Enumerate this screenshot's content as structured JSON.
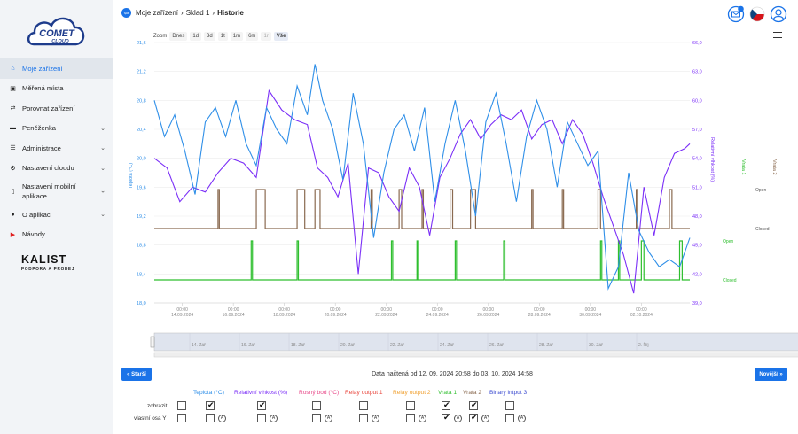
{
  "sidebar": {
    "logo_text": "COMET",
    "logo_sub": "CLOUD",
    "items": [
      {
        "label": "Moje zařízení",
        "icon": "home-icon",
        "active": true,
        "chevron": false
      },
      {
        "label": "Měřená místa",
        "icon": "location-icon",
        "active": false,
        "chevron": false
      },
      {
        "label": "Porovnat zařízení",
        "icon": "compare-icon",
        "active": false,
        "chevron": false
      },
      {
        "label": "Peněženka",
        "icon": "wallet-icon",
        "active": false,
        "chevron": true
      },
      {
        "label": "Administrace",
        "icon": "admin-icon",
        "active": false,
        "chevron": true
      },
      {
        "label": "Nastavení cloudu",
        "icon": "cloud-settings-icon",
        "active": false,
        "chevron": true
      },
      {
        "label": "Nastavení mobilní aplikace",
        "icon": "mobile-icon",
        "active": false,
        "chevron": true
      },
      {
        "label": "O aplikaci",
        "icon": "info-icon",
        "active": false,
        "chevron": true
      },
      {
        "label": "Návody",
        "icon": "youtube-icon",
        "active": false,
        "chevron": false
      }
    ],
    "partner_name": "KALIST",
    "partner_sub": "PODPORA A PRODEJ"
  },
  "breadcrumb": [
    "Moje zařízení",
    "Sklad 1",
    "Historie"
  ],
  "zoom": {
    "label": "Zoom",
    "options": [
      "Dnes",
      "1d",
      "3d",
      "1t",
      "1m",
      "6m",
      "1r",
      "Vše"
    ],
    "active": "Vše"
  },
  "chart_data": {
    "type": "line",
    "title": "",
    "x_start": "2024-09-12",
    "x_ticks": [
      {
        "time": "00:00",
        "date": "14.09.2024"
      },
      {
        "time": "00:00",
        "date": "16.09.2024"
      },
      {
        "time": "00:00",
        "date": "18.09.2024"
      },
      {
        "time": "00:00",
        "date": "20.09.2024"
      },
      {
        "time": "00:00",
        "date": "22.09.2024"
      },
      {
        "time": "00:00",
        "date": "24.09.2024"
      },
      {
        "time": "00:00",
        "date": "26.09.2024"
      },
      {
        "time": "00:00",
        "date": "28.09.2024"
      },
      {
        "time": "00:00",
        "date": "30.09.2024"
      },
      {
        "time": "00:00",
        "date": "02.10.2024"
      }
    ],
    "navigator_labels": [
      "14. Zář",
      "16. Zář",
      "18. Zář",
      "20. Zář",
      "22. Zář",
      "24. Zář",
      "26. Zář",
      "28. Zář",
      "30. Zář",
      "2. Říj"
    ],
    "y_left": {
      "label": "Teplota (°C)",
      "ticks": [
        "21,6",
        "21,2",
        "20,8",
        "20,4",
        "20,0",
        "19,6",
        "19,2",
        "18,8",
        "18,4",
        "18,0"
      ],
      "min": 18.0,
      "max": 21.6
    },
    "y_right": {
      "label": "Relativní vlhkost (%)",
      "ticks": [
        "66,0",
        "63,0",
        "60,0",
        "57,0",
        "54,0",
        "51,0",
        "48,0",
        "45,0",
        "42,0",
        "39,0"
      ],
      "min": 39.0,
      "max": 66.0
    },
    "y_vrata1": {
      "label": "Vrata 1",
      "ticks": [
        "Open",
        "Closed"
      ]
    },
    "y_vrata2": {
      "label": "Vrata 2",
      "ticks": [
        "Open",
        "Closed"
      ]
    },
    "series": [
      {
        "name": "Teplota (°C)",
        "color": "#2f8fe8",
        "x": [
          0,
          0.4,
          0.8,
          1.2,
          1.6,
          2.0,
          2.4,
          2.8,
          3.2,
          3.6,
          4.0,
          4.4,
          4.8,
          5.2,
          5.6,
          6.0,
          6.3,
          6.6,
          7.0,
          7.4,
          7.8,
          8.2,
          8.6,
          9.0,
          9.4,
          9.8,
          10.2,
          10.6,
          11.0,
          11.4,
          11.8,
          12.2,
          12.6,
          13.0,
          13.4,
          13.8,
          14.2,
          14.6,
          15.0,
          15.4,
          15.8,
          16.2,
          16.6,
          17.0,
          17.4,
          17.8,
          18.2,
          18.6,
          19.0,
          19.4,
          19.8,
          20.2,
          20.6,
          21.0
        ],
        "y": [
          20.8,
          20.3,
          20.6,
          20.1,
          19.5,
          20.5,
          20.7,
          20.3,
          20.8,
          20.2,
          19.9,
          20.7,
          20.4,
          20.2,
          21.0,
          20.6,
          21.3,
          20.8,
          20.4,
          19.7,
          20.9,
          20.2,
          18.9,
          19.8,
          20.4,
          20.6,
          20.1,
          20.7,
          19.4,
          20.2,
          20.8,
          20.1,
          19.2,
          20.5,
          20.9,
          20.2,
          19.4,
          20.3,
          20.8,
          20.4,
          19.6,
          20.5,
          20.2,
          19.9,
          20.1,
          18.2,
          18.5,
          19.8,
          19.0,
          18.7,
          18.5,
          18.6,
          18.5,
          18.9
        ]
      },
      {
        "name": "Relativní vlhkost (%)",
        "color": "#7b2ff7",
        "x": [
          0,
          0.5,
          1.0,
          1.5,
          2.0,
          2.5,
          3.0,
          3.5,
          4.0,
          4.5,
          5.0,
          5.5,
          6.0,
          6.4,
          6.8,
          7.2,
          7.6,
          8.0,
          8.4,
          8.8,
          9.2,
          9.6,
          10.0,
          10.4,
          10.8,
          11.2,
          11.6,
          12.0,
          12.4,
          12.8,
          13.2,
          13.6,
          14.0,
          14.4,
          14.8,
          15.2,
          15.6,
          16.0,
          16.4,
          16.8,
          17.2,
          17.6,
          18.0,
          18.4,
          18.8,
          19.2,
          19.6,
          20.0,
          20.4,
          20.8,
          21.0
        ],
        "y": [
          54.0,
          53.0,
          49.5,
          51.0,
          50.5,
          52.5,
          54.0,
          53.5,
          52.0,
          61.0,
          59.0,
          58.0,
          57.5,
          53.0,
          52.0,
          50.0,
          53.5,
          42.0,
          53.0,
          52.5,
          50.0,
          48.5,
          53.0,
          51.0,
          46.0,
          52.0,
          54.0,
          56.5,
          58.0,
          56.0,
          57.5,
          58.5,
          58.0,
          59.0,
          56.0,
          57.5,
          58.0,
          55.5,
          58.0,
          56.5,
          53.5,
          50.0,
          47.0,
          44.0,
          40.0,
          51.0,
          46.0,
          52.0,
          54.5,
          55.0,
          55.5
        ]
      },
      {
        "name": "Rosný bod (°C)",
        "color": "#e84a8a",
        "x": [],
        "y": []
      },
      {
        "name": "Relay output 1",
        "color": "#e8453c",
        "x": [],
        "y": []
      },
      {
        "name": "Relay output 2",
        "color": "#f0a030",
        "x": [],
        "y": []
      },
      {
        "name": "Vrata 1",
        "color": "#2fbf2f",
        "pulses": [
          [
            3.8,
            3.85
          ],
          [
            5.6,
            5.65
          ],
          [
            9.3,
            9.35
          ],
          [
            10.3,
            10.33
          ],
          [
            11.8,
            11.85
          ],
          [
            13.7,
            13.75
          ],
          [
            17.5,
            17.55
          ],
          [
            18.2,
            18.25
          ],
          [
            19.1,
            19.2
          ],
          [
            20.6,
            20.7
          ]
        ]
      },
      {
        "name": "Vrata 2",
        "color": "#8a6a50",
        "pulses": [
          [
            2.5,
            2.55
          ],
          [
            4.0,
            4.35
          ],
          [
            5.6,
            5.9
          ],
          [
            6.3,
            6.5
          ],
          [
            8.5,
            8.55
          ],
          [
            9.6,
            9.7
          ],
          [
            10.5,
            10.55
          ],
          [
            11.6,
            11.7
          ],
          [
            12.4,
            12.6
          ],
          [
            14.8,
            14.85
          ],
          [
            16.0,
            16.05
          ],
          [
            17.4,
            17.5
          ],
          [
            18.9,
            18.95
          ],
          [
            20.2,
            20.3
          ]
        ]
      }
    ]
  },
  "nav": {
    "prev_label": "Starší",
    "next_label": "Novější"
  },
  "loaded_text": "Data načtená od 12. 09. 2024 20:58 do 03. 10. 2024 14:58",
  "grid": {
    "show_label": "zobrazit",
    "own_axis_label": "vlastní osa Y",
    "axis_symbol": "A",
    "columns": [
      {
        "label": "Teplota (°C)",
        "color": "#2f8fe8",
        "show": true,
        "own_axis": false
      },
      {
        "label": "Relativní vlhkost (%)",
        "color": "#7b2ff7",
        "show": true,
        "own_axis": false
      },
      {
        "label": "Rosný bod (°C)",
        "color": "#e84a8a",
        "show": false,
        "own_axis": false
      },
      {
        "label": "Relay output 1",
        "color": "#e8453c",
        "show": false,
        "own_axis": false
      },
      {
        "label": "Relay output 2",
        "color": "#f0a030",
        "show": false,
        "own_axis": false
      },
      {
        "label": "Vrata 1",
        "color": "#2fbf2f",
        "show": true,
        "own_axis": true
      },
      {
        "label": "Vrata 2",
        "color": "#8a6a50",
        "show": true,
        "own_axis": true
      },
      {
        "label": "Binary intput 3",
        "color": "#3b4bd0",
        "show": false,
        "own_axis": false
      }
    ]
  }
}
